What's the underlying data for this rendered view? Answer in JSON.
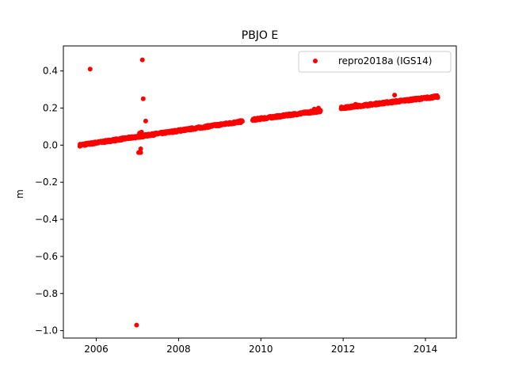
{
  "chart_data": {
    "type": "scatter",
    "title": "PBJO E",
    "xlabel": "",
    "ylabel": "m",
    "xlim": [
      2005.2,
      2014.75
    ],
    "ylim": [
      -1.04,
      0.535
    ],
    "x_ticks": [
      2006,
      2008,
      2010,
      2012,
      2014
    ],
    "x_tick_labels": [
      "2006",
      "2008",
      "2010",
      "2012",
      "2014"
    ],
    "y_ticks": [
      0.4,
      0.2,
      0.0,
      -0.2,
      -0.4,
      -0.6,
      -0.8,
      -1.0
    ],
    "y_tick_labels": [
      "0.4",
      "0.2",
      "0.0",
      "−0.2",
      "−0.4",
      "−0.6",
      "−0.8",
      "−1.0"
    ],
    "grid": false,
    "legend_position": "top-right",
    "series": [
      {
        "name": "repro2018a (IGS14)",
        "color": "#ff0000",
        "marker": "circle",
        "trend_segments": [
          {
            "x_start": 2005.6,
            "x_end": 2009.55,
            "y_start": 0.0,
            "y_end": 0.128
          },
          {
            "x_start": 2009.8,
            "x_end": 2011.45,
            "y_start": 0.137,
            "y_end": 0.185
          },
          {
            "x_start": 2011.95,
            "x_end": 2014.3,
            "y_start": 0.2,
            "y_end": 0.262
          }
        ],
        "outliers": [
          {
            "x": 2005.85,
            "y": 0.41
          },
          {
            "x": 2007.12,
            "y": 0.46
          },
          {
            "x": 2007.14,
            "y": 0.25
          },
          {
            "x": 2007.2,
            "y": 0.13
          },
          {
            "x": 2007.08,
            "y": -0.02
          },
          {
            "x": 2007.03,
            "y": -0.04
          },
          {
            "x": 2007.08,
            "y": -0.04
          },
          {
            "x": 2006.98,
            "y": -0.97
          },
          {
            "x": 2007.1,
            "y": 0.07
          },
          {
            "x": 2007.05,
            "y": 0.065
          },
          {
            "x": 2008.05,
            "y": 0.085
          },
          {
            "x": 2011.3,
            "y": 0.195
          },
          {
            "x": 2011.4,
            "y": 0.2
          },
          {
            "x": 2012.3,
            "y": 0.22
          },
          {
            "x": 2013.25,
            "y": 0.27
          }
        ]
      }
    ]
  }
}
